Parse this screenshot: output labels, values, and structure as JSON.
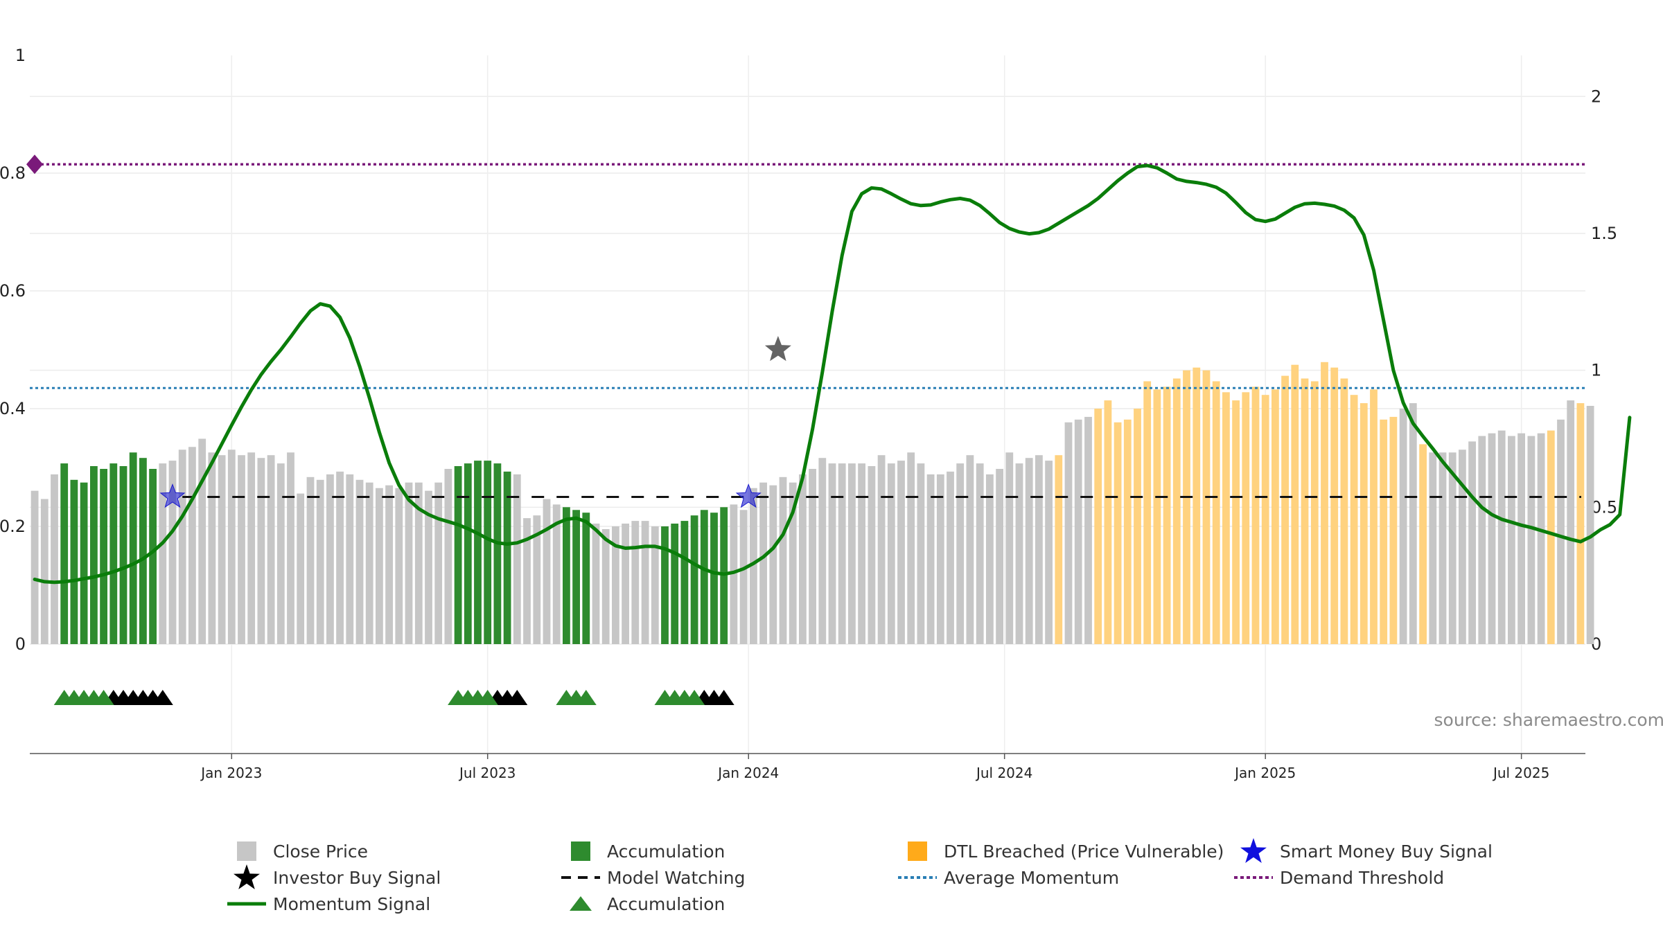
{
  "source_text": "source: sharemaestro.com",
  "colors": {
    "close_price": "#c6c6c6",
    "accumulation": "#2e8b2e",
    "dtl_breached": "#ffd27f",
    "momentum": "#0a7d0a",
    "average_momentum": "#2a7fb5",
    "demand_threshold": "#7a1a7a",
    "smart_money": "#1a1acc",
    "investor": "#111111",
    "model_watching": "#111111"
  },
  "legend": [
    {
      "key": "close_price",
      "label": "Close Price",
      "symbol": "square-gray"
    },
    {
      "key": "accumulation_bar",
      "label": "Accumulation",
      "symbol": "square-green"
    },
    {
      "key": "dtl_breached",
      "label": "DTL Breached (Price Vulnerable)",
      "symbol": "square-orange"
    },
    {
      "key": "smart_money",
      "label": "Smart Money Buy Signal",
      "symbol": "star-blue"
    },
    {
      "key": "investor",
      "label": "Investor Buy Signal",
      "symbol": "star-black"
    },
    {
      "key": "model_watching",
      "label": "Model Watching",
      "symbol": "dash-black"
    },
    {
      "key": "average_momentum",
      "label": "Average Momentum",
      "symbol": "dot-blue"
    },
    {
      "key": "demand_threshold",
      "label": "Demand Threshold",
      "symbol": "dot-purple"
    },
    {
      "key": "momentum",
      "label": "Momentum Signal",
      "symbol": "line-green"
    },
    {
      "key": "accumulation_marker",
      "label": "Accumulation",
      "symbol": "triangle-green"
    }
  ],
  "chart_data": {
    "type": "bar",
    "x_ticks": [
      "Jan 2023",
      "Jul 2023",
      "Jan 2024",
      "Jul 2024",
      "Jan 2025",
      "Jul 2025"
    ],
    "x_tick_weeks": [
      20,
      46,
      72.5,
      98.5,
      125,
      151
    ],
    "x_range": [
      -0.5,
      157.5
    ],
    "y_left_ticks": [
      "0",
      "0.2",
      "0.4",
      "0.6",
      "0.8",
      "1"
    ],
    "y_left_range": [
      0,
      1
    ],
    "y_right_ticks": [
      "0",
      "0.5",
      "1",
      "1.5",
      "2"
    ],
    "y_right_range": [
      0,
      2.15
    ],
    "grid": true,
    "legend_position": "bottom",
    "close_price": [
      0.56,
      0.53,
      0.62,
      0.66,
      0.6,
      0.59,
      0.65,
      0.64,
      0.66,
      0.65,
      0.7,
      0.68,
      0.64,
      0.66,
      0.67,
      0.71,
      0.72,
      0.75,
      0.7,
      0.69,
      0.71,
      0.69,
      0.7,
      0.68,
      0.69,
      0.66,
      0.7,
      0.55,
      0.61,
      0.6,
      0.62,
      0.63,
      0.62,
      0.6,
      0.59,
      0.57,
      0.58,
      0.57,
      0.59,
      0.59,
      0.56,
      0.59,
      0.64,
      0.65,
      0.66,
      0.67,
      0.67,
      0.66,
      0.63,
      0.62,
      0.46,
      0.47,
      0.53,
      0.51,
      0.5,
      0.49,
      0.48,
      0.44,
      0.42,
      0.43,
      0.44,
      0.45,
      0.45,
      0.43,
      0.43,
      0.44,
      0.45,
      0.47,
      0.49,
      0.48,
      0.5,
      0.51,
      0.49,
      0.57,
      0.59,
      0.58,
      0.61,
      0.59,
      0.62,
      0.64,
      0.68,
      0.66,
      0.66,
      0.66,
      0.66,
      0.65,
      0.69,
      0.66,
      0.67,
      0.7,
      0.66,
      0.62,
      0.62,
      0.63,
      0.66,
      0.69,
      0.66,
      0.62,
      0.64,
      0.7,
      0.66,
      0.68,
      0.69,
      0.67,
      0.69,
      0.81,
      0.82,
      0.83,
      0.86,
      0.89,
      0.81,
      0.82,
      0.86,
      0.96,
      0.93,
      0.94,
      0.97,
      1.0,
      1.01,
      1.0,
      0.96,
      0.92,
      0.89,
      0.92,
      0.94,
      0.91,
      0.93,
      0.98,
      1.02,
      0.97,
      0.96,
      1.03,
      1.01,
      0.97,
      0.91,
      0.88,
      0.93,
      0.82,
      0.83,
      0.86,
      0.88,
      0.73,
      0.7,
      0.7,
      0.7,
      0.71,
      0.74,
      0.76,
      0.77,
      0.78,
      0.76,
      0.77,
      0.76,
      0.77,
      0.78,
      0.82,
      0.89,
      0.88,
      0.87
    ],
    "accumulation_weeks": [
      3,
      4,
      5,
      6,
      7,
      8,
      9,
      10,
      11,
      12,
      43,
      44,
      45,
      46,
      47,
      48,
      54,
      55,
      56,
      64,
      65,
      66,
      67,
      68,
      69,
      70
    ],
    "dtl_breached_weeks": [
      104,
      108,
      109,
      110,
      111,
      112,
      113,
      114,
      115,
      116,
      117,
      118,
      119,
      120,
      121,
      122,
      123,
      124,
      125,
      126,
      127,
      128,
      129,
      130,
      131,
      132,
      133,
      134,
      135,
      136,
      137,
      138,
      141,
      154,
      157
    ],
    "momentum_signal": [
      0.11,
      0.106,
      0.105,
      0.106,
      0.108,
      0.111,
      0.114,
      0.118,
      0.123,
      0.129,
      0.136,
      0.145,
      0.157,
      0.172,
      0.192,
      0.217,
      0.246,
      0.277,
      0.308,
      0.34,
      0.372,
      0.403,
      0.432,
      0.458,
      0.48,
      0.5,
      0.522,
      0.545,
      0.566,
      0.578,
      0.574,
      0.555,
      0.52,
      0.472,
      0.418,
      0.36,
      0.308,
      0.27,
      0.245,
      0.23,
      0.22,
      0.213,
      0.208,
      0.203,
      0.196,
      0.188,
      0.179,
      0.172,
      0.17,
      0.172,
      0.178,
      0.186,
      0.195,
      0.205,
      0.212,
      0.214,
      0.208,
      0.194,
      0.178,
      0.167,
      0.163,
      0.164,
      0.166,
      0.166,
      0.162,
      0.155,
      0.146,
      0.136,
      0.127,
      0.121,
      0.119,
      0.122,
      0.128,
      0.137,
      0.148,
      0.163,
      0.186,
      0.224,
      0.283,
      0.365,
      0.462,
      0.565,
      0.66,
      0.735,
      0.765,
      0.775,
      0.773,
      0.765,
      0.756,
      0.748,
      0.745,
      0.746,
      0.751,
      0.755,
      0.757,
      0.754,
      0.745,
      0.731,
      0.716,
      0.706,
      0.7,
      0.697,
      0.699,
      0.705,
      0.715,
      0.725,
      0.735,
      0.745,
      0.757,
      0.772,
      0.787,
      0.8,
      0.811,
      0.813,
      0.809,
      0.8,
      0.79,
      0.786,
      0.784,
      0.781,
      0.776,
      0.766,
      0.75,
      0.733,
      0.721,
      0.718,
      0.722,
      0.732,
      0.742,
      0.748,
      0.749,
      0.747,
      0.744,
      0.737,
      0.724,
      0.695,
      0.635,
      0.55,
      0.465,
      0.41,
      0.375,
      0.353,
      0.332,
      0.31,
      0.29,
      0.27,
      0.25,
      0.232,
      0.22,
      0.212,
      0.207,
      0.202,
      0.198,
      0.193,
      0.188,
      0.183,
      0.178,
      0.174,
      0.182,
      0.194,
      0.203,
      0.22,
      0.385
    ],
    "average_momentum": 0.435,
    "demand_threshold": 0.815,
    "model_watching_level": 0.25,
    "smart_money_signals": [
      {
        "week": 14,
        "y": 0.25
      },
      {
        "week": 72.5,
        "y": 0.25
      }
    ],
    "investor_signals": [
      {
        "week": 75.5,
        "y": 0.5
      }
    ],
    "accumulation_markers_green": [
      3,
      4,
      5,
      6,
      7,
      43,
      44,
      45,
      46,
      54,
      55,
      56,
      64,
      65,
      66,
      67
    ],
    "accumulation_markers_black": [
      8,
      9,
      10,
      11,
      12,
      13,
      47,
      48,
      49,
      68,
      69,
      70
    ]
  }
}
